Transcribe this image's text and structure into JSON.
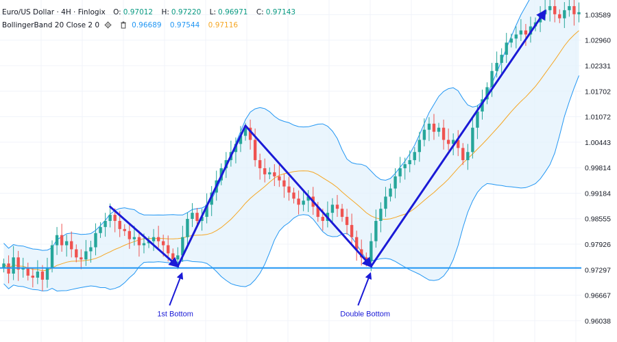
{
  "header": {
    "symbol_title": "Euro/US Dollar · 4H · Finlogix",
    "ohlc": [
      {
        "key": "O:",
        "value": "0.97012"
      },
      {
        "key": "H:",
        "value": "0.97220"
      },
      {
        "key": "L:",
        "value": "0.96971"
      },
      {
        "key": "C:",
        "value": "0.97143"
      }
    ],
    "indicator_label": "BollingerBand 20 Close 2 0",
    "indicator_values": {
      "lower": "0.96689",
      "upper": "0.97544",
      "basis": "0.97116"
    },
    "icons": [
      "gear-icon",
      "trash-icon"
    ]
  },
  "colors": {
    "up": "#26a69a",
    "down": "#ef5350",
    "band_fill": "#e3f1fc",
    "band_line": "#2196f3",
    "basis_line": "#f5a623",
    "support_line": "#2196f3",
    "pattern_arrow": "#1a1ad6"
  },
  "chart_data": {
    "type": "candlestick",
    "y_ticks": [
      "1.03589",
      "1.02960",
      "1.02331",
      "1.01702",
      "1.01072",
      "1.00443",
      "0.99814",
      "0.99184",
      "0.98555",
      "0.97926",
      "0.97297",
      "0.96667",
      "0.96038"
    ],
    "ylim": [
      0.9585,
      1.0385
    ],
    "grid": true,
    "support_level": 0.9734,
    "annotations": [
      {
        "text": "1st Bottom",
        "x_index": 36,
        "y": 0.9655
      },
      {
        "text": "Double Bottom",
        "x_index": 75,
        "y": 0.9655
      }
    ],
    "pattern_path": [
      {
        "x_index": 22,
        "y": 0.9885
      },
      {
        "x_index": 36,
        "y": 0.9738
      },
      {
        "x_index": 50,
        "y": 1.0085
      },
      {
        "x_index": 76,
        "y": 0.9738
      },
      {
        "x_index": 112,
        "y": 1.0368
      }
    ],
    "closes": [
      0.9745,
      0.972,
      0.976,
      0.973,
      0.9735,
      0.9715,
      0.971,
      0.9725,
      0.9705,
      0.9735,
      0.979,
      0.9815,
      0.979,
      0.98,
      0.978,
      0.976,
      0.9755,
      0.9775,
      0.9785,
      0.982,
      0.9835,
      0.985,
      0.9865,
      0.985,
      0.983,
      0.9825,
      0.9805,
      0.981,
      0.979,
      0.9795,
      0.98,
      0.981,
      0.98,
      0.979,
      0.977,
      0.9755,
      0.9765,
      0.981,
      0.9855,
      0.987,
      0.985,
      0.986,
      0.989,
      0.992,
      0.995,
      0.998,
      1.0,
      1.002,
      1.004,
      1.006,
      1.008,
      1.005,
      1.0,
      0.998,
      0.9965,
      0.997,
      0.996,
      0.995,
      0.9935,
      0.992,
      0.9905,
      0.989,
      0.99,
      0.991,
      0.9885,
      0.986,
      0.985,
      0.987,
      0.989,
      0.988,
      0.986,
      0.984,
      0.981,
      0.978,
      0.976,
      0.975,
      0.98,
      0.985,
      0.988,
      0.991,
      0.993,
      0.996,
      0.998,
      0.999,
      1.0,
      1.002,
      1.005,
      1.0075,
      1.009,
      1.007,
      1.008,
      1.005,
      1.004,
      1.005,
      1.003,
      1.0,
      1.002,
      1.008,
      1.012,
      1.015,
      1.018,
      1.022,
      1.024,
      1.026,
      1.029,
      1.03,
      1.031,
      1.032,
      1.031,
      1.033,
      1.034,
      1.036,
      1.037,
      1.038,
      1.036,
      1.035,
      1.037,
      1.038,
      1.036,
      1.0365
    ]
  }
}
